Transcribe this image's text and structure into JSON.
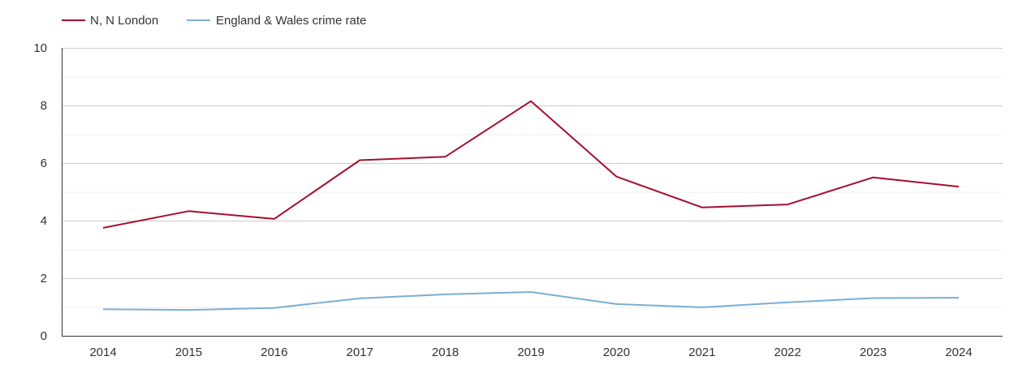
{
  "chart_data": {
    "type": "line",
    "x": [
      2014,
      2015,
      2016,
      2017,
      2018,
      2019,
      2020,
      2021,
      2022,
      2023,
      2024
    ],
    "x_tick_labels": [
      "2014",
      "2015",
      "2016",
      "2017",
      "2018",
      "2019",
      "2020",
      "2021",
      "2022",
      "2023",
      "2024"
    ],
    "ylim": [
      0,
      10
    ],
    "y_ticks": [
      0,
      2,
      4,
      6,
      8,
      10
    ],
    "y_tick_labels": [
      "0",
      "2",
      "4",
      "6",
      "8",
      "10"
    ],
    "grid": true,
    "legend_position": "top-left",
    "series": [
      {
        "name": "N, N London",
        "color": "#a50f2d",
        "values": [
          3.75,
          4.33,
          4.06,
          6.1,
          6.22,
          8.15,
          5.53,
          4.46,
          4.56,
          5.5,
          5.18
        ]
      },
      {
        "name": "England & Wales crime rate",
        "color": "#7bafd4",
        "values": [
          0.92,
          0.9,
          0.97,
          1.3,
          1.44,
          1.52,
          1.1,
          0.99,
          1.16,
          1.31,
          1.32
        ]
      }
    ]
  }
}
